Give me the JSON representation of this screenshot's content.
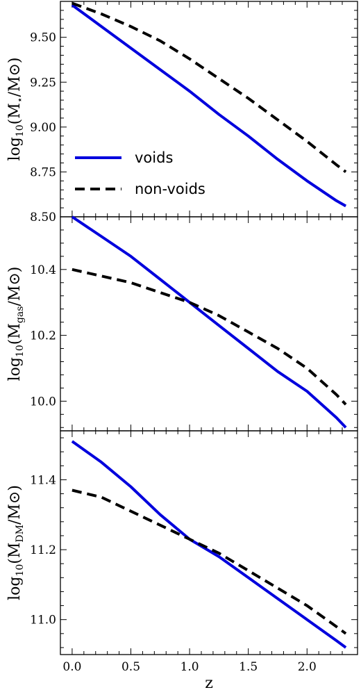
{
  "chart_data": [
    {
      "type": "line",
      "ylabel_parts": [
        "log",
        "10",
        "(M",
        "⋆",
        "/M⊙)"
      ],
      "ylim": [
        8.5,
        9.7
      ],
      "yticks": [
        8.5,
        8.75,
        9.0,
        9.25,
        9.5
      ],
      "ytick_labels": [
        "8.50",
        "8.75",
        "9.00",
        "9.25",
        "9.50"
      ],
      "legend_loc": "lower-left",
      "x": [
        0.0,
        0.25,
        0.5,
        0.75,
        1.0,
        1.25,
        1.5,
        1.75,
        2.0,
        2.25,
        2.33
      ],
      "series": [
        {
          "name": "voids",
          "color": "#0000dd",
          "style": "solid",
          "values": [
            9.68,
            9.56,
            9.44,
            9.32,
            9.2,
            9.07,
            8.95,
            8.82,
            8.7,
            8.59,
            8.56
          ]
        },
        {
          "name": "non-voids",
          "color": "#000000",
          "style": "dashed",
          "values": [
            9.69,
            9.63,
            9.56,
            9.48,
            9.38,
            9.27,
            9.16,
            9.04,
            8.92,
            8.79,
            8.75
          ]
        }
      ]
    },
    {
      "type": "line",
      "ylabel_parts": [
        "log",
        "10",
        "(M",
        "gas",
        "/M⊙)"
      ],
      "ylim": [
        9.91,
        10.56
      ],
      "yticks": [
        10.0,
        10.2,
        10.4
      ],
      "ytick_labels": [
        "10.0",
        "10.2",
        "10.4"
      ],
      "x": [
        0.0,
        0.25,
        0.5,
        0.75,
        1.0,
        1.25,
        1.5,
        1.75,
        2.0,
        2.25,
        2.33
      ],
      "series": [
        {
          "name": "voids",
          "color": "#0000dd",
          "style": "solid",
          "values": [
            10.56,
            10.5,
            10.44,
            10.37,
            10.3,
            10.23,
            10.16,
            10.09,
            10.03,
            9.95,
            9.92
          ]
        },
        {
          "name": "non-voids",
          "color": "#000000",
          "style": "dashed",
          "values": [
            10.4,
            10.38,
            10.36,
            10.33,
            10.3,
            10.26,
            10.21,
            10.16,
            10.1,
            10.02,
            9.99
          ]
        }
      ]
    },
    {
      "type": "line",
      "ylabel_parts": [
        "log",
        "10",
        "(M",
        "DM",
        "/M⊙)"
      ],
      "ylim": [
        10.9,
        11.54
      ],
      "yticks": [
        11.0,
        11.2,
        11.4
      ],
      "ytick_labels": [
        "11.0",
        "11.2",
        "11.4"
      ],
      "xlabel": "z",
      "xticks": [
        0.0,
        0.5,
        1.0,
        1.5,
        2.0
      ],
      "xtick_labels": [
        "0.0",
        "0.5",
        "1.0",
        "1.5",
        "2.0"
      ],
      "xlim": [
        -0.1,
        2.43
      ],
      "x": [
        0.0,
        0.25,
        0.5,
        0.75,
        1.0,
        1.25,
        1.5,
        1.75,
        2.0,
        2.25,
        2.33
      ],
      "series": [
        {
          "name": "voids",
          "color": "#0000dd",
          "style": "solid",
          "values": [
            11.51,
            11.45,
            11.38,
            11.3,
            11.23,
            11.18,
            11.12,
            11.06,
            11.0,
            10.94,
            10.92
          ]
        },
        {
          "name": "non-voids",
          "color": "#000000",
          "style": "dashed",
          "values": [
            11.37,
            11.35,
            11.31,
            11.27,
            11.23,
            11.19,
            11.14,
            11.09,
            11.04,
            10.98,
            10.96
          ]
        }
      ]
    }
  ]
}
